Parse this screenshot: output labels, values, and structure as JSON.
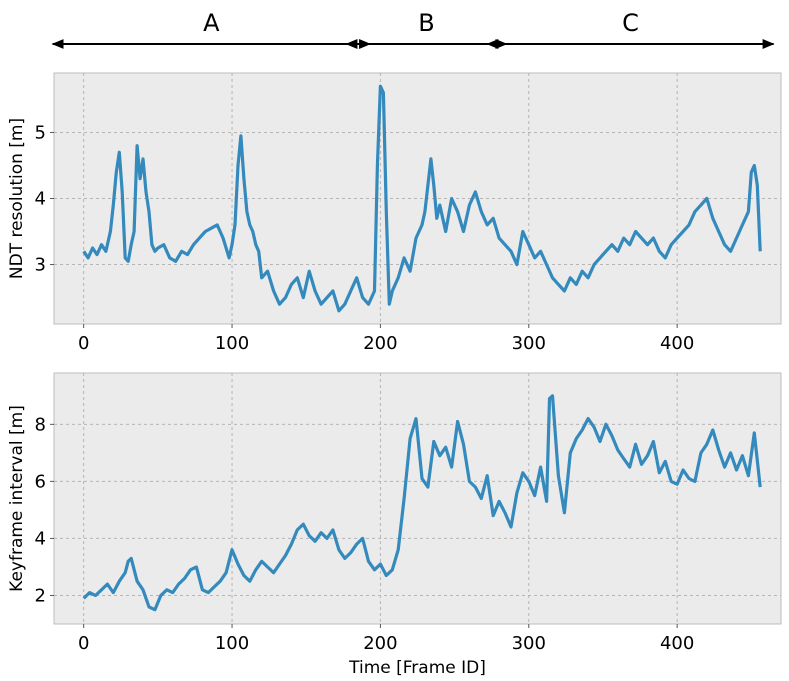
{
  "phases": [
    {
      "label": "A",
      "x_start": 0,
      "x_end": 193
    },
    {
      "label": "B",
      "x_start": 198,
      "x_end": 285
    },
    {
      "label": "C",
      "x_start": 293,
      "x_end": 465
    }
  ],
  "colors": {
    "line": "#348ABD",
    "panel_bg": "#EBEBEB",
    "grid": "#B5B5B5",
    "arrow": "#000000"
  },
  "chart_data": [
    {
      "type": "line",
      "ylabel": "NDT resolution [m]",
      "xlabel": "",
      "xlim": [
        -20,
        470
      ],
      "ylim": [
        2.1,
        5.9
      ],
      "xticks": [
        0,
        100,
        200,
        300,
        400
      ],
      "yticks": [
        3,
        4,
        5
      ],
      "grid": true,
      "series": [
        {
          "x": [
            0,
            3,
            6,
            9,
            12,
            15,
            18,
            20,
            22,
            24,
            26,
            28,
            30,
            32,
            34,
            36,
            38,
            40,
            42,
            44,
            46,
            48,
            50,
            54,
            58,
            62,
            66,
            70,
            74,
            78,
            82,
            86,
            90,
            94,
            98,
            100,
            102,
            104,
            106,
            108,
            110,
            112,
            114,
            116,
            118,
            120,
            124,
            128,
            132,
            136,
            140,
            144,
            148,
            152,
            156,
            160,
            164,
            168,
            172,
            176,
            180,
            184,
            188,
            192,
            196,
            198,
            200,
            202,
            204,
            206,
            208,
            212,
            216,
            220,
            224,
            228,
            230,
            232,
            234,
            236,
            238,
            240,
            244,
            248,
            252,
            256,
            260,
            264,
            268,
            272,
            276,
            280,
            284,
            288,
            292,
            296,
            300,
            304,
            308,
            312,
            316,
            320,
            324,
            328,
            332,
            336,
            340,
            344,
            348,
            352,
            356,
            360,
            364,
            368,
            372,
            376,
            380,
            384,
            388,
            392,
            396,
            400,
            404,
            408,
            412,
            416,
            420,
            424,
            428,
            432,
            436,
            440,
            444,
            448,
            450,
            452,
            454,
            456
          ],
          "y": [
            3.2,
            3.1,
            3.25,
            3.15,
            3.3,
            3.2,
            3.5,
            3.9,
            4.4,
            4.7,
            4.1,
            3.1,
            3.05,
            3.3,
            3.5,
            4.8,
            4.3,
            4.6,
            4.1,
            3.8,
            3.3,
            3.2,
            3.25,
            3.3,
            3.1,
            3.05,
            3.2,
            3.15,
            3.3,
            3.4,
            3.5,
            3.55,
            3.6,
            3.4,
            3.1,
            3.3,
            3.6,
            4.5,
            4.95,
            4.3,
            3.8,
            3.6,
            3.5,
            3.3,
            3.2,
            2.8,
            2.9,
            2.6,
            2.4,
            2.5,
            2.7,
            2.8,
            2.5,
            2.9,
            2.6,
            2.4,
            2.5,
            2.6,
            2.3,
            2.4,
            2.6,
            2.8,
            2.5,
            2.4,
            2.6,
            4.5,
            5.7,
            5.6,
            3.8,
            2.4,
            2.6,
            2.8,
            3.1,
            2.9,
            3.4,
            3.6,
            3.8,
            4.2,
            4.6,
            4.2,
            3.7,
            3.9,
            3.5,
            4.0,
            3.8,
            3.5,
            3.9,
            4.1,
            3.8,
            3.6,
            3.7,
            3.4,
            3.3,
            3.2,
            3.0,
            3.5,
            3.3,
            3.1,
            3.2,
            3.0,
            2.8,
            2.7,
            2.6,
            2.8,
            2.7,
            2.9,
            2.8,
            3.0,
            3.1,
            3.2,
            3.3,
            3.2,
            3.4,
            3.3,
            3.5,
            3.4,
            3.3,
            3.4,
            3.2,
            3.1,
            3.3,
            3.4,
            3.5,
            3.6,
            3.8,
            3.9,
            4.0,
            3.7,
            3.5,
            3.3,
            3.2,
            3.4,
            3.6,
            3.8,
            4.4,
            4.5,
            4.2,
            3.2
          ]
        }
      ]
    },
    {
      "type": "line",
      "ylabel": "Keyframe interval [m]",
      "xlabel": "Time [Frame ID]",
      "xlim": [
        -20,
        470
      ],
      "ylim": [
        1.0,
        9.8
      ],
      "xticks": [
        0,
        100,
        200,
        300,
        400
      ],
      "yticks": [
        2,
        4,
        6,
        8
      ],
      "grid": true,
      "series": [
        {
          "x": [
            0,
            4,
            8,
            12,
            16,
            20,
            24,
            28,
            30,
            32,
            36,
            40,
            44,
            48,
            52,
            56,
            60,
            64,
            68,
            72,
            76,
            80,
            84,
            88,
            92,
            96,
            100,
            104,
            108,
            112,
            116,
            120,
            124,
            128,
            132,
            136,
            140,
            144,
            148,
            152,
            156,
            160,
            164,
            168,
            172,
            176,
            180,
            184,
            188,
            192,
            196,
            200,
            204,
            208,
            212,
            216,
            220,
            224,
            228,
            232,
            236,
            240,
            244,
            248,
            252,
            256,
            260,
            264,
            268,
            272,
            276,
            280,
            284,
            288,
            292,
            296,
            300,
            304,
            308,
            312,
            314,
            316,
            320,
            324,
            328,
            332,
            336,
            340,
            344,
            348,
            352,
            356,
            360,
            364,
            368,
            372,
            376,
            380,
            384,
            388,
            392,
            396,
            400,
            404,
            408,
            412,
            416,
            420,
            424,
            428,
            432,
            436,
            440,
            444,
            448,
            452,
            456
          ],
          "y": [
            1.9,
            2.1,
            2.0,
            2.2,
            2.4,
            2.1,
            2.5,
            2.8,
            3.2,
            3.3,
            2.5,
            2.2,
            1.6,
            1.5,
            2.0,
            2.2,
            2.1,
            2.4,
            2.6,
            2.9,
            3.0,
            2.2,
            2.1,
            2.3,
            2.5,
            2.8,
            3.6,
            3.1,
            2.7,
            2.5,
            2.9,
            3.2,
            3.0,
            2.8,
            3.1,
            3.4,
            3.8,
            4.3,
            4.5,
            4.1,
            3.9,
            4.2,
            4.0,
            4.3,
            3.6,
            3.3,
            3.5,
            3.8,
            4.0,
            3.2,
            2.9,
            3.1,
            2.7,
            2.9,
            3.6,
            5.4,
            7.5,
            8.2,
            6.1,
            5.8,
            7.4,
            6.9,
            7.2,
            6.5,
            8.1,
            7.3,
            6.0,
            5.8,
            5.4,
            6.2,
            4.8,
            5.3,
            4.9,
            4.4,
            5.6,
            6.3,
            6.0,
            5.5,
            6.5,
            5.3,
            8.9,
            9.0,
            6.2,
            4.9,
            7.0,
            7.5,
            7.8,
            8.2,
            7.9,
            7.4,
            8.0,
            7.6,
            7.1,
            6.8,
            6.5,
            7.3,
            6.6,
            6.9,
            7.4,
            6.3,
            6.7,
            6.0,
            5.9,
            6.4,
            6.1,
            6.0,
            7.0,
            7.3,
            7.8,
            7.1,
            6.5,
            7.0,
            6.4,
            6.9,
            6.2,
            7.7,
            5.8
          ]
        }
      ]
    }
  ]
}
